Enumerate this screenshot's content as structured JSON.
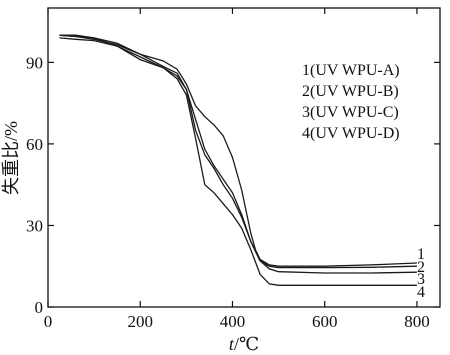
{
  "chart_data": {
    "type": "line",
    "xlabel": {
      "var": "t",
      "unit": "/℃"
    },
    "ylabel": "失重比/%",
    "xlim": [
      0,
      850
    ],
    "ylim": [
      0,
      110
    ],
    "x_ticks": [
      0,
      200,
      400,
      600,
      800
    ],
    "y_ticks": [
      0,
      30,
      60,
      90
    ],
    "legend_position": "top-right",
    "series": [
      {
        "name": "1(UV WPU-A)",
        "end_label": "1",
        "x": [
          25,
          60,
          100,
          150,
          200,
          250,
          280,
          300,
          320,
          340,
          360,
          380,
          400,
          420,
          440,
          450,
          460,
          480,
          500,
          600,
          700,
          800
        ],
        "y": [
          100,
          99.5,
          98.5,
          96.5,
          93,
          90.5,
          87.5,
          82,
          74,
          70,
          67,
          63,
          55,
          43,
          27,
          21,
          17.5,
          15.5,
          15,
          15,
          15.5,
          16.2
        ]
      },
      {
        "name": "2(UV WPU-B)",
        "end_label": "2",
        "x": [
          25,
          60,
          100,
          150,
          200,
          250,
          280,
          300,
          320,
          340,
          360,
          380,
          400,
          420,
          440,
          460,
          480,
          500,
          600,
          700,
          800
        ],
        "y": [
          100,
          99.5,
          99,
          97,
          93,
          88.5,
          86,
          80,
          69,
          58,
          52,
          47,
          42,
          34,
          24,
          17,
          15,
          14.5,
          14.5,
          14.6,
          15
        ]
      },
      {
        "name": "3(UV WPU-C)",
        "end_label": "3",
        "x": [
          25,
          60,
          100,
          150,
          200,
          250,
          280,
          300,
          320,
          340,
          360,
          380,
          400,
          420,
          440,
          460,
          480,
          500,
          600,
          700,
          800
        ],
        "y": [
          99,
          98.5,
          98,
          96,
          91,
          88,
          85,
          80,
          65,
          56,
          51,
          45,
          40,
          33,
          24,
          17,
          14,
          13,
          12.5,
          12.5,
          12.8
        ]
      },
      {
        "name": "4(UV WPU-D)",
        "end_label": "4",
        "x": [
          25,
          60,
          100,
          150,
          200,
          250,
          280,
          300,
          320,
          340,
          360,
          380,
          400,
          420,
          440,
          460,
          480,
          500,
          600,
          700,
          800
        ],
        "y": [
          100,
          100,
          99,
          96,
          92,
          88,
          84,
          78,
          62,
          45,
          42,
          38,
          34,
          29,
          21,
          12,
          8.5,
          8,
          8,
          8,
          8
        ]
      }
    ]
  }
}
